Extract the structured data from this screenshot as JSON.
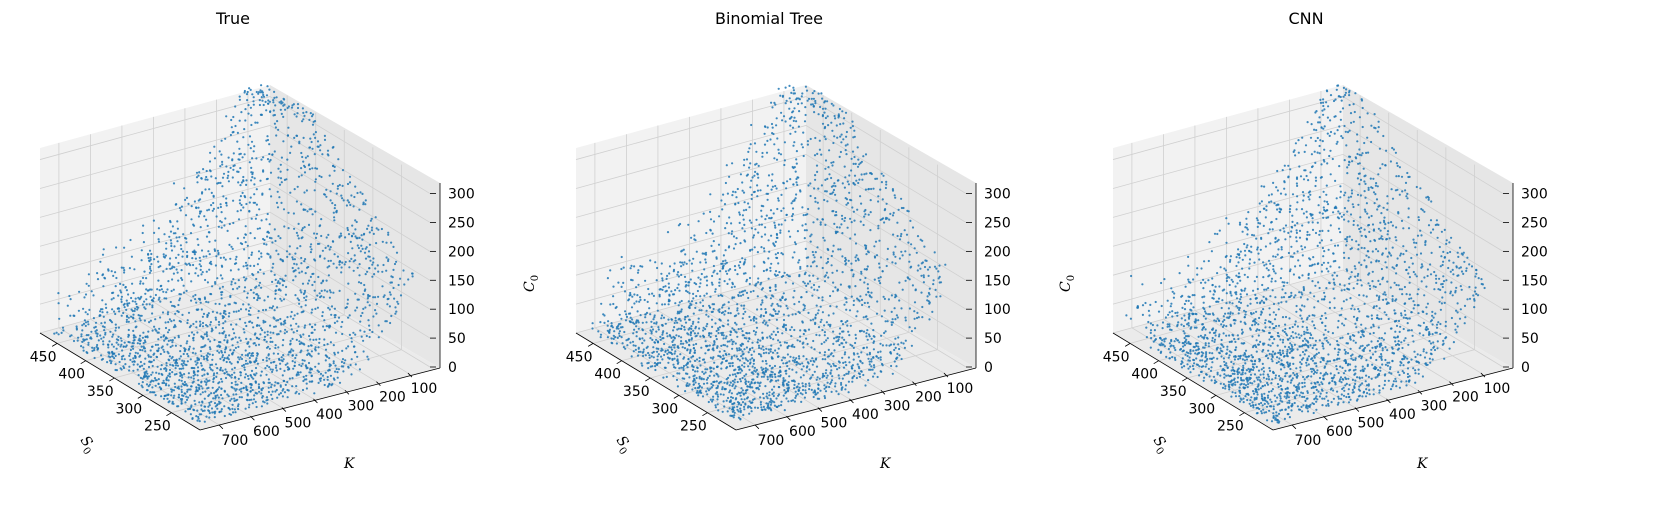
{
  "chart_data": [
    {
      "type": "scatter",
      "title": "True",
      "xlabel": "S0",
      "xlabel_main": "S",
      "xlabel_sub": "0",
      "ylabel": "K",
      "ylabel_main": "K",
      "ylabel_sub": "",
      "zlabel": "C0",
      "zlabel_main": "C",
      "zlabel_sub": "0",
      "x_ticks": [
        450,
        400,
        350,
        300,
        250
      ],
      "y_ticks": [
        700,
        600,
        500,
        400,
        300,
        200,
        100
      ],
      "z_ticks": [
        0,
        50,
        100,
        150,
        200,
        250,
        300
      ],
      "xlim": [
        200,
        480
      ],
      "ylim": [
        30,
        760
      ],
      "zlim": [
        0,
        320
      ],
      "projection": "3d",
      "grid": true,
      "point_color": "#1f77b4",
      "n_points": 10000,
      "description": "Hump-shaped cloud: C0 rises toward high S0 and low K, reaching ~320; dense band near 0-60."
    },
    {
      "type": "scatter",
      "title": "Binomial Tree",
      "xlabel": "S0",
      "xlabel_main": "S",
      "xlabel_sub": "0",
      "ylabel": "K",
      "ylabel_main": "K",
      "ylabel_sub": "",
      "zlabel": "C0",
      "zlabel_main": "C",
      "zlabel_sub": "0",
      "x_ticks": [
        450,
        400,
        350,
        300,
        250
      ],
      "y_ticks": [
        700,
        600,
        500,
        400,
        300,
        200,
        100
      ],
      "z_ticks": [
        0,
        50,
        100,
        150,
        200,
        250,
        300
      ],
      "xlim": [
        200,
        480
      ],
      "ylim": [
        30,
        760
      ],
      "zlim": [
        0,
        320
      ],
      "projection": "3d",
      "grid": true,
      "point_color": "#1f77b4",
      "n_points": 10000,
      "description": "Similar hump with more spread and higher outliers (~350)."
    },
    {
      "type": "scatter",
      "title": "CNN",
      "xlabel": "S0",
      "xlabel_main": "S",
      "xlabel_sub": "0",
      "ylabel": "K",
      "ylabel_main": "K",
      "ylabel_sub": "",
      "zlabel": "",
      "zlabel_main": "",
      "zlabel_sub": "",
      "x_ticks": [
        450,
        400,
        350,
        300,
        250
      ],
      "y_ticks": [
        700,
        600,
        500,
        400,
        300,
        200,
        100
      ],
      "z_ticks": [
        0,
        50,
        100,
        150,
        200,
        250,
        300
      ],
      "xlim": [
        200,
        480
      ],
      "ylim": [
        30,
        760
      ],
      "zlim": [
        0,
        320
      ],
      "projection": "3d",
      "grid": true,
      "point_color": "#1f77b4",
      "n_points": 10000,
      "description": "Hump-shaped cloud with slightly lower, more compressed peak (~300)."
    }
  ]
}
